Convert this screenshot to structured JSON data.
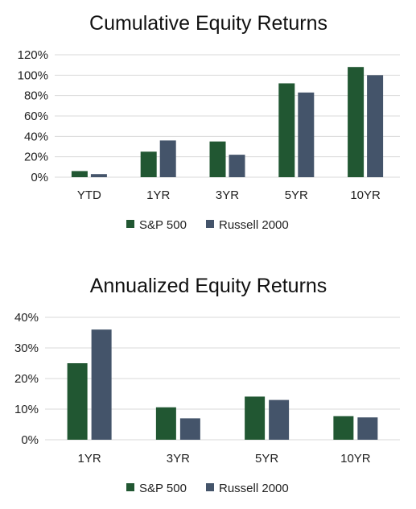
{
  "colors": {
    "sp500": "#215732",
    "russell": "#44546a",
    "grid": "#d9d9d9"
  },
  "chart_data": [
    {
      "type": "bar",
      "title": "Cumulative Equity Returns",
      "categories": [
        "YTD",
        "1YR",
        "3YR",
        "5YR",
        "10YR"
      ],
      "series": [
        {
          "name": "S&P 500",
          "values": [
            6,
            25,
            35,
            92,
            108
          ]
        },
        {
          "name": "Russell 2000",
          "values": [
            3,
            36,
            22,
            83,
            100
          ]
        }
      ],
      "yticks": [
        "0%",
        "20%",
        "40%",
        "60%",
        "80%",
        "100%",
        "120%"
      ],
      "ylim": [
        0,
        120
      ],
      "grid": true,
      "legend": "bottom"
    },
    {
      "type": "bar",
      "title": "Annualized Equity Returns",
      "categories": [
        "1YR",
        "3YR",
        "5YR",
        "10YR"
      ],
      "series": [
        {
          "name": "S&P 500",
          "values": [
            25,
            10.6,
            14.1,
            7.7
          ]
        },
        {
          "name": "Russell 2000",
          "values": [
            36,
            7,
            13,
            7.3
          ]
        }
      ],
      "yticks": [
        "0%",
        "10%",
        "20%",
        "30%",
        "40%"
      ],
      "ylim": [
        0,
        40
      ],
      "grid": true,
      "legend": "bottom"
    }
  ]
}
